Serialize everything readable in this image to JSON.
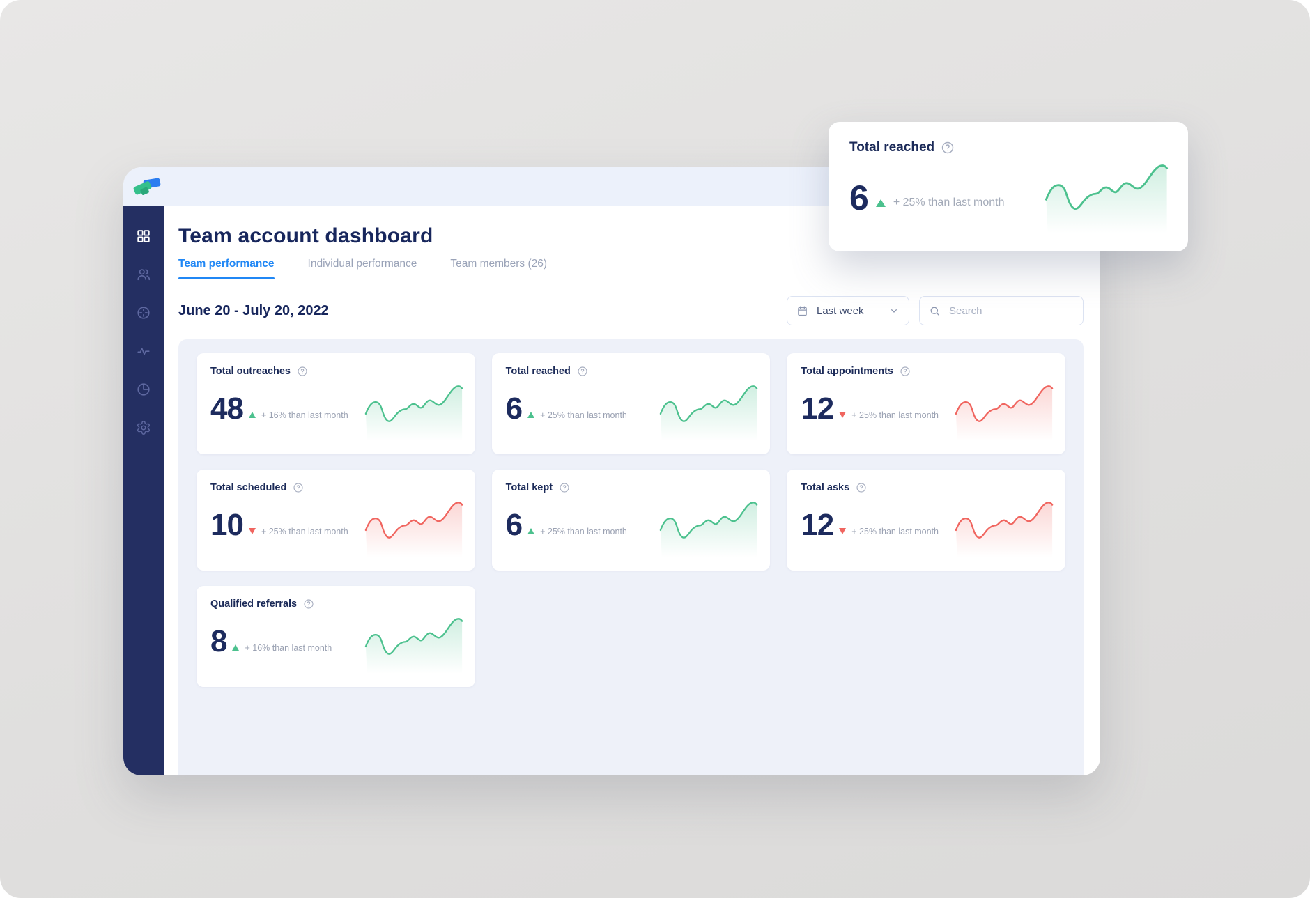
{
  "page_title": "Team account dashboard",
  "sidebar": {
    "items": [
      {
        "name": "dashboard",
        "icon": "grid-icon",
        "active": true
      },
      {
        "name": "team",
        "icon": "users-icon",
        "active": false
      },
      {
        "name": "targets",
        "icon": "target-icon",
        "active": false
      },
      {
        "name": "activity",
        "icon": "activity-icon",
        "active": false
      },
      {
        "name": "reports",
        "icon": "pie-chart-icon",
        "active": false
      },
      {
        "name": "settings",
        "icon": "gear-icon",
        "active": false
      }
    ]
  },
  "tabs": [
    {
      "label": "Team performance",
      "active": true
    },
    {
      "label": "Individual performance",
      "active": false
    },
    {
      "label": "Team members (26)",
      "active": false
    }
  ],
  "toolbar": {
    "date_range": "June 20 - July 20, 2022",
    "period_selected": "Last week",
    "search_placeholder": "Search"
  },
  "cards": [
    {
      "title": "Total outreaches",
      "value": "48",
      "trend": "up",
      "delta": "+ 16% than last month",
      "color": "green"
    },
    {
      "title": "Total reached",
      "value": "6",
      "trend": "up",
      "delta": "+ 25% than last month",
      "color": "green"
    },
    {
      "title": "Total appointments",
      "value": "12",
      "trend": "down",
      "delta": "+ 25% than last month",
      "color": "red"
    },
    {
      "title": "Total scheduled",
      "value": "10",
      "trend": "down",
      "delta": "+ 25% than last month",
      "color": "red"
    },
    {
      "title": "Total kept",
      "value": "6",
      "trend": "up",
      "delta": "+ 25% than last month",
      "color": "green"
    },
    {
      "title": "Total asks",
      "value": "12",
      "trend": "down",
      "delta": "+ 25% than last month",
      "color": "red"
    },
    {
      "title": "Qualified referrals",
      "value": "8",
      "trend": "up",
      "delta": "+ 16% than last month",
      "color": "green"
    }
  ],
  "popover": {
    "title": "Total reached",
    "value": "6",
    "trend": "up",
    "delta": "+ 25% than last month",
    "color": "green"
  },
  "colors": {
    "accent_blue": "#2087f5",
    "navy_text": "#17265c",
    "sidebar_bg": "#242f62",
    "header_bg": "#ecf1fb",
    "panel_bg": "#eef1f9",
    "green": "#4cc18e",
    "red": "#f0655f",
    "logo_blue": "#2b7df0",
    "logo_green": "#35c08b"
  }
}
